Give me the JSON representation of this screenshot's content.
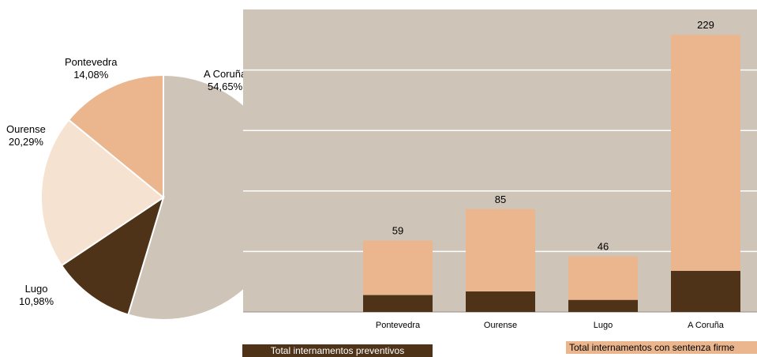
{
  "chart_data": [
    {
      "type": "pie",
      "slices": [
        {
          "label": "A Coruña",
          "value": 54.65,
          "value_label": "54,65%",
          "color": "#cfc4b8"
        },
        {
          "label": "Lugo",
          "value": 10.98,
          "value_label": "10,98%",
          "color": "#4e3319"
        },
        {
          "label": "Ourense",
          "value": 20.29,
          "value_label": "20,29%",
          "color": "#f5e2d0"
        },
        {
          "label": "Pontevedra",
          "value": 14.08,
          "value_label": "14,08%",
          "color": "#ebb68d"
        }
      ]
    },
    {
      "type": "bar",
      "stacked": true,
      "categories": [
        "Pontevedra",
        "Ourense",
        "Lugo",
        "A Coruña"
      ],
      "series": [
        {
          "name": "Total internamentos preventivos",
          "values": [
            14,
            17,
            10,
            34
          ],
          "color": "#4e3319"
        },
        {
          "name": "Total internamentos con sentenza firme",
          "values": [
            45,
            68,
            36,
            195
          ],
          "color": "#ebb68d"
        }
      ],
      "totals": [
        59,
        85,
        46,
        229
      ],
      "ylim": [
        0,
        250
      ],
      "grid": true,
      "plot_background": "#cfc4b8",
      "legend": "bottom"
    }
  ]
}
